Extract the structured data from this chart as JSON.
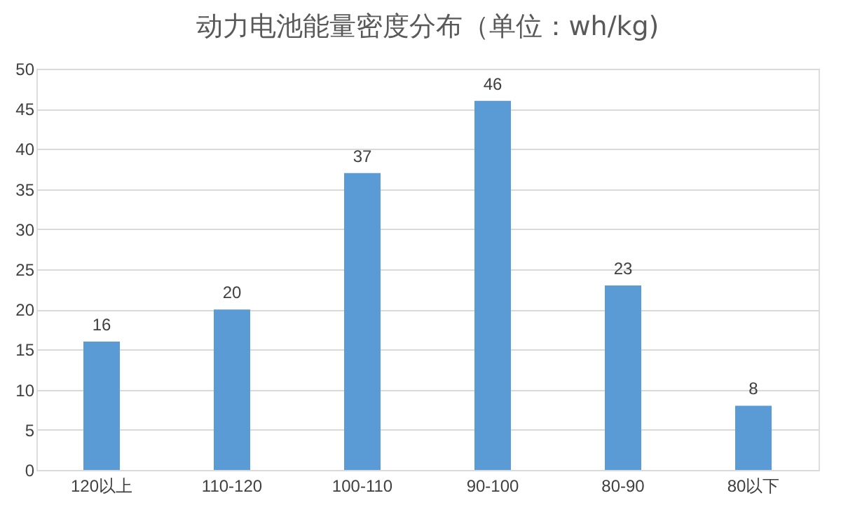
{
  "chart_data": {
    "type": "bar",
    "title": "动力电池能量密度分布（单位：wh/kg)",
    "categories": [
      "120以上",
      "110-120",
      "100-110",
      "90-100",
      "80-90",
      "80以下"
    ],
    "values": [
      16,
      20,
      37,
      46,
      23,
      8
    ],
    "color": "#5b9bd5",
    "ylim": [
      0,
      50
    ],
    "yticks": [
      0,
      5,
      10,
      15,
      20,
      25,
      30,
      35,
      40,
      45,
      50
    ],
    "grid": "y",
    "data_labels": true
  }
}
